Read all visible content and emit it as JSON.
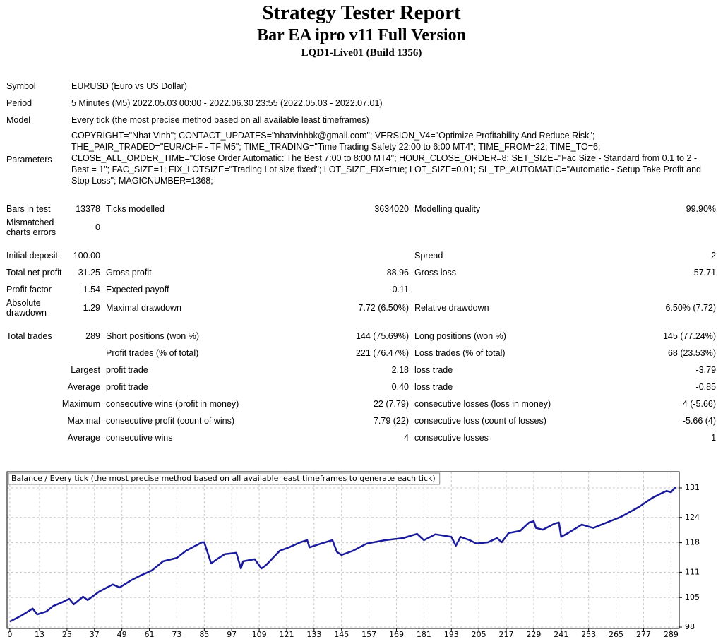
{
  "header": {
    "title": "Strategy Tester Report",
    "subtitle": "Bar EA ipro v11 Full Version",
    "build": "LQD1-Live01 (Build 1356)"
  },
  "report": {
    "sections": [
      [
        {
          "label": "Symbol",
          "text": "EURUSD (Euro vs US Dollar)"
        },
        {
          "label": "Period",
          "text": "5 Minutes (M5) 2022.05.03 00:00 - 2022.06.30 23:55 (2022.05.03 - 2022.07.01)"
        },
        {
          "label": "Model",
          "text": "Every tick (the most precise method based on all available least timeframes)"
        },
        {
          "label": "Parameters",
          "text": "COPYRIGHT=\"Nhat Vinh\"; CONTACT_UPDATES=\"nhatvinhbk@gmail.com\"; VERSION_V4=\"Optimize Profitability And Reduce Risk\"; THE_PAIR_TRADED=\"EUR/CHF - TF M5\"; TIME_TRADING=\"Time Trading Safety 22:00 to 6:00 MT4\"; TIME_FROM=22; TIME_TO=6; CLOSE_ALL_ORDER_TIME=\"Close Order Automatic: The Best 7:00 to 8:00 MT4\"; HOUR_CLOSE_ORDER=8; SET_SIZE=\"Fac Size - Standard from 0.1 to 2 - Best = 1\"; FAC_SIZE=1; FIX_LOTSIZE=\"Trading Lot size fixed\"; LOT_SIZE_FIX=true; LOT_SIZE=0.01; SL_TP_AUTOMATIC=\"Automatic - Setup Take Profit and Stop Loss\"; MAGICNUMBER=1368;"
        }
      ],
      [
        {
          "label": "Bars in test",
          "value": "13378",
          "label2": "Ticks modelled",
          "value2": "3634020",
          "label3": "Modelling quality",
          "value3": "99.90%"
        },
        {
          "label": "Mismatched charts errors",
          "value": "0"
        }
      ],
      [
        {
          "label": "Initial deposit",
          "value": "100.00",
          "label3": "Spread",
          "value3": "2"
        },
        {
          "label": "Total net profit",
          "value": "31.25",
          "label2": "Gross profit",
          "value2": "88.96",
          "label3": "Gross loss",
          "value3": "-57.71"
        },
        {
          "label": "Profit factor",
          "value": "1.54",
          "label2": "Expected payoff",
          "value2": "0.11"
        },
        {
          "label": "Absolute drawdown",
          "value": "1.29",
          "label2": "Maximal drawdown",
          "value2": "7.72 (6.50%)",
          "label3": "Relative drawdown",
          "value3": "6.50% (7.72)"
        }
      ],
      [
        {
          "label": "Total trades",
          "value": "289",
          "label2": "Short positions (won %)",
          "value2": "144 (75.69%)",
          "label3": "Long positions (won %)",
          "value3": "145 (77.24%)"
        },
        {
          "label2": "Profit trades (% of total)",
          "value2": "221 (76.47%)",
          "label3": "Loss trades (% of total)",
          "value3": "68 (23.53%)"
        },
        {
          "prefix": "Largest",
          "label2": "profit trade",
          "value2": "2.18",
          "label3": "loss trade",
          "value3": "-3.79"
        },
        {
          "prefix": "Average",
          "label2": "profit trade",
          "value2": "0.40",
          "label3": "loss trade",
          "value3": "-0.85"
        },
        {
          "prefix": "Maximum",
          "label2": "consecutive wins (profit in money)",
          "value2": "22 (7.79)",
          "label3": "consecutive losses (loss in money)",
          "value3": "4 (-5.66)"
        },
        {
          "prefix": "Maximal",
          "label2": "consecutive profit (count of wins)",
          "value2": "7.79 (22)",
          "label3": "consecutive loss (count of losses)",
          "value3": "-5.66 (4)"
        },
        {
          "prefix": "Average",
          "label2": "consecutive wins",
          "value2": "4",
          "label3": "consecutive losses",
          "value3": "1"
        }
      ]
    ]
  },
  "chart_data": {
    "type": "line",
    "legend": "Balance / Every tick (the most precise method based on all available least timeframes to generate each tick)",
    "color": "#1a1a9c",
    "grid": true,
    "x": [
      0,
      5,
      10,
      12,
      16,
      19,
      23,
      26,
      28,
      32,
      34,
      39,
      45,
      48,
      53,
      57,
      62,
      67,
      73,
      77,
      84,
      85,
      88,
      90,
      94,
      99,
      101,
      102,
      107,
      110,
      112,
      118,
      122,
      127,
      130,
      131,
      136,
      141,
      143,
      145,
      150,
      156,
      164,
      172,
      178,
      181,
      186,
      193,
      195,
      197,
      201,
      204,
      209,
      213,
      215,
      218,
      223,
      227,
      229,
      230,
      233,
      238,
      240,
      241,
      244,
      250,
      255,
      261,
      267,
      275,
      281,
      284,
      287,
      289,
      291
    ],
    "values": [
      99.3,
      100.7,
      102.4,
      101.0,
      101.7,
      103.0,
      103.9,
      104.7,
      103.4,
      105.2,
      104.4,
      106.4,
      108.1,
      107.4,
      109.1,
      110.2,
      111.4,
      113.6,
      114.4,
      116.1,
      118.1,
      118.1,
      113.1,
      113.9,
      115.3,
      115.6,
      111.9,
      113.6,
      114.1,
      111.9,
      112.7,
      116.1,
      116.9,
      118.1,
      118.6,
      116.9,
      117.8,
      118.6,
      115.8,
      115.1,
      116.1,
      117.8,
      118.6,
      119.1,
      120.1,
      118.6,
      120.0,
      119.4,
      117.3,
      119.4,
      118.6,
      117.8,
      118.1,
      119.1,
      118.1,
      120.3,
      120.8,
      122.8,
      123.1,
      121.5,
      121.1,
      122.5,
      122.8,
      119.4,
      120.3,
      122.3,
      121.5,
      122.8,
      124.1,
      126.5,
      128.7,
      129.5,
      130.3,
      130.0,
      131.2
    ],
    "xlim": [
      -1.2,
      292.6
    ],
    "ylim": [
      97.67,
      134.85
    ],
    "xticks": [
      0,
      13,
      25,
      37,
      49,
      61,
      73,
      85,
      97,
      109,
      121,
      133,
      145,
      157,
      169,
      181,
      193,
      205,
      217,
      229,
      241,
      253,
      265,
      277,
      289
    ],
    "yticks": [
      98,
      105,
      111,
      118,
      124,
      131
    ]
  }
}
